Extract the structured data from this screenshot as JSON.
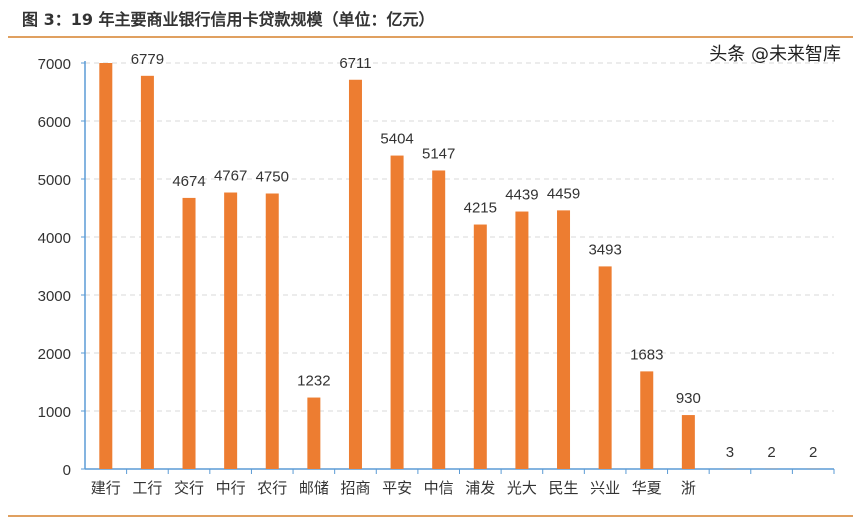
{
  "title": "图 3：19 年主要商业银行信用卡贷款规模（单位：亿元）",
  "watermark": "头条 @未来智库",
  "colors": {
    "bar": "#ed7d31",
    "axis": "#5b9bd5",
    "grid": "#d9d9d9",
    "rule": "#e0a060"
  },
  "chart_data": {
    "type": "bar",
    "title": "图 3：19 年主要商业银行信用卡贷款规模（单位：亿元）",
    "categories": [
      "建行",
      "工行",
      "交行",
      "中行",
      "农行",
      "邮储",
      "招商",
      "平安",
      "中信",
      "浦发",
      "光大",
      "民生",
      "兴业",
      "华夏",
      "浙",
      "",
      "",
      ""
    ],
    "values": [
      7000,
      6779,
      4674,
      4767,
      4750,
      1232,
      6711,
      5404,
      5147,
      4215,
      4439,
      4459,
      3493,
      1683,
      930,
      3,
      2,
      2
    ],
    "labels": [
      "",
      "6779",
      "4674",
      "4767",
      "4750",
      "1232",
      "6711",
      "5404",
      "5147",
      "4215",
      "4439",
      "4459",
      "3493",
      "1683",
      "930",
      "3",
      "2",
      "2"
    ],
    "ylim": [
      0,
      7000
    ],
    "yticks": [
      0,
      1000,
      2000,
      3000,
      4000,
      5000,
      6000,
      7000
    ],
    "grid": true,
    "xlabel": "",
    "ylabel": ""
  }
}
